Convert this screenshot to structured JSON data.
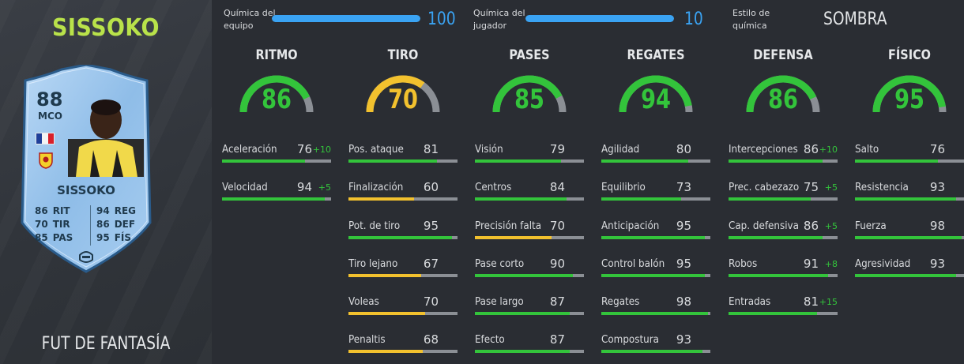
{
  "player": {
    "name": "SISSOKO",
    "footer": "FUT DE FANTASÍA",
    "card": {
      "rating": "88",
      "position": "MCO",
      "name": "SISSOKO",
      "stats": [
        {
          "left_value": "86",
          "left_label": "RIT",
          "right_value": "94",
          "right_label": "REG"
        },
        {
          "left_value": "70",
          "left_label": "TIR",
          "right_value": "86",
          "right_label": "DEF"
        },
        {
          "left_value": "85",
          "left_label": "PAS",
          "right_value": "95",
          "right_label": "FÍS"
        }
      ]
    }
  },
  "chemistry": {
    "team_label": "Química del\nequipo",
    "team_value": "100",
    "team_fraction": 1.0,
    "player_label": "Química del\njugador",
    "player_value": "10",
    "player_fraction": 1.0,
    "style_label": "Estilo de\nquímica",
    "style_value": "SOMBRA"
  },
  "colors": {
    "green": "#33c43b",
    "yellow": "#f2c12e",
    "blue": "#3aa3f3",
    "grey_track": "#8b8f95",
    "name_green": "#b9e24a"
  },
  "categories": [
    {
      "title": "RITMO",
      "value": "86",
      "fraction": 0.86,
      "color": "green",
      "stats": [
        {
          "name": "Aceleración",
          "value": "76",
          "bonus": "+10",
          "color": "green"
        },
        {
          "name": "Velocidad",
          "value": "94",
          "bonus": "+5",
          "color": "green"
        }
      ]
    },
    {
      "title": "TIRO",
      "value": "70",
      "fraction": 0.7,
      "color": "yellow",
      "stats": [
        {
          "name": "Pos. ataque",
          "value": "81",
          "bonus": "",
          "color": "green"
        },
        {
          "name": "Finalización",
          "value": "60",
          "bonus": "",
          "color": "yellow"
        },
        {
          "name": "Pot. de tiro",
          "value": "95",
          "bonus": "",
          "color": "green"
        },
        {
          "name": "Tiro lejano",
          "value": "67",
          "bonus": "",
          "color": "yellow"
        },
        {
          "name": "Voleas",
          "value": "70",
          "bonus": "",
          "color": "yellow"
        },
        {
          "name": "Penaltis",
          "value": "68",
          "bonus": "",
          "color": "yellow"
        }
      ]
    },
    {
      "title": "PASES",
      "value": "85",
      "fraction": 0.85,
      "color": "green",
      "stats": [
        {
          "name": "Visión",
          "value": "79",
          "bonus": "",
          "color": "green"
        },
        {
          "name": "Centros",
          "value": "84",
          "bonus": "",
          "color": "green"
        },
        {
          "name": "Precisión falta",
          "value": "70",
          "bonus": "",
          "color": "yellow"
        },
        {
          "name": "Pase corto",
          "value": "90",
          "bonus": "",
          "color": "green"
        },
        {
          "name": "Pase largo",
          "value": "87",
          "bonus": "",
          "color": "green"
        },
        {
          "name": "Efecto",
          "value": "87",
          "bonus": "",
          "color": "green"
        }
      ]
    },
    {
      "title": "REGATES",
      "value": "94",
      "fraction": 0.94,
      "color": "green",
      "stats": [
        {
          "name": "Agilidad",
          "value": "80",
          "bonus": "",
          "color": "green"
        },
        {
          "name": "Equilibrio",
          "value": "73",
          "bonus": "",
          "color": "green"
        },
        {
          "name": "Anticipación",
          "value": "95",
          "bonus": "",
          "color": "green"
        },
        {
          "name": "Control balón",
          "value": "95",
          "bonus": "",
          "color": "green"
        },
        {
          "name": "Regates",
          "value": "98",
          "bonus": "",
          "color": "green"
        },
        {
          "name": "Compostura",
          "value": "93",
          "bonus": "",
          "color": "green"
        }
      ]
    },
    {
      "title": "DEFENSA",
      "value": "86",
      "fraction": 0.86,
      "color": "green",
      "stats": [
        {
          "name": "Intercepciones",
          "value": "86",
          "bonus": "+10",
          "color": "green"
        },
        {
          "name": "Prec. cabezazo",
          "value": "75",
          "bonus": "+5",
          "color": "green"
        },
        {
          "name": "Cap. defensiva",
          "value": "86",
          "bonus": "+5",
          "color": "green"
        },
        {
          "name": "Robos",
          "value": "91",
          "bonus": "+8",
          "color": "green"
        },
        {
          "name": "Entradas",
          "value": "81",
          "bonus": "+15",
          "color": "green"
        }
      ]
    },
    {
      "title": "FÍSICO",
      "value": "95",
      "fraction": 0.95,
      "color": "green",
      "stats": [
        {
          "name": "Salto",
          "value": "76",
          "bonus": "",
          "color": "green"
        },
        {
          "name": "Resistencia",
          "value": "93",
          "bonus": "",
          "color": "green"
        },
        {
          "name": "Fuerza",
          "value": "98",
          "bonus": "",
          "color": "green"
        },
        {
          "name": "Agresividad",
          "value": "93",
          "bonus": "",
          "color": "green"
        }
      ]
    }
  ]
}
